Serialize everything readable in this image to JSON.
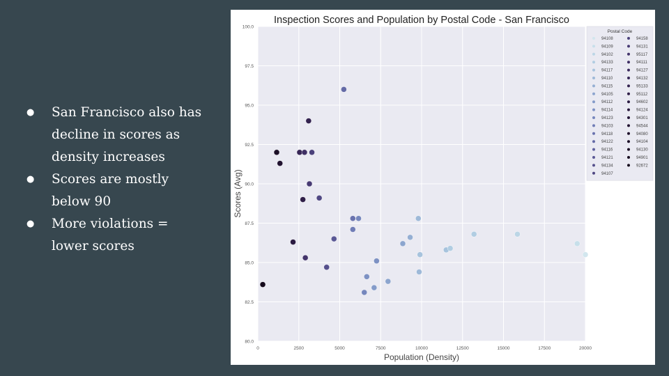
{
  "slide": {
    "background": "#37474f",
    "bullets": [
      "San Francisco also has decline in scores as density increases",
      "Scores are mostly below 90",
      "More violations = lower scores"
    ],
    "bullet_glyph": "●"
  },
  "chart_data": {
    "type": "scatter",
    "title": "Inspection Scores and Population by Postal Code - San Francisco",
    "xlabel": "Population (Density)",
    "ylabel": "Scores (Avg)",
    "xlim": [
      0,
      20000
    ],
    "ylim": [
      80,
      100
    ],
    "x_ticks": [
      "0",
      "2500",
      "5000",
      "7500",
      "10000",
      "12500",
      "15000",
      "17500",
      "20000"
    ],
    "y_ticks": [
      "80.0",
      "82.5",
      "85.0",
      "87.5",
      "90.0",
      "92.5",
      "95.0",
      "97.5",
      "100.0"
    ],
    "grid": true,
    "legend": {
      "title": "Postal Code",
      "placement": "top-right",
      "entries": [
        "94108",
        "94109",
        "94102",
        "94133",
        "94117",
        "94110",
        "94115",
        "94105",
        "94112",
        "94114",
        "94123",
        "94103",
        "94118",
        "94122",
        "94116",
        "94121",
        "94134",
        "94107",
        "94158",
        "94131",
        "95117",
        "94111",
        "94127",
        "94132",
        "95133",
        "95112",
        "94602",
        "94124",
        "94301",
        "94544",
        "94080",
        "94104",
        "94130",
        "94901",
        "92672"
      ],
      "colors": [
        "#d2e6ee",
        "#c7dfea",
        "#bcd6e6",
        "#b1cde2",
        "#a7c3dd",
        "#9eb9d8",
        "#95afd3",
        "#8ca5ce",
        "#849bc9",
        "#7d91c3",
        "#7687bd",
        "#707db6",
        "#6a73ae",
        "#646aa6",
        "#5f619e",
        "#5a5895",
        "#55508c",
        "#504883",
        "#4b417b",
        "#473a73",
        "#43346b",
        "#3f2f64",
        "#3b2a5d",
        "#372656",
        "#33224f",
        "#2f1e48",
        "#2b1b42",
        "#28183c",
        "#251536",
        "#221331",
        "#1f112c",
        "#1c0f27",
        "#1a0d23",
        "#170b1f",
        "#14091b"
      ]
    },
    "points": [
      {
        "x": 300,
        "y": 83.6,
        "color": "#14091b"
      },
      {
        "x": 1150,
        "y": 92.0,
        "color": "#1c0f27"
      },
      {
        "x": 1350,
        "y": 91.3,
        "color": "#221331"
      },
      {
        "x": 2150,
        "y": 86.3,
        "color": "#2b1b42"
      },
      {
        "x": 2550,
        "y": 92.0,
        "color": "#372656"
      },
      {
        "x": 2750,
        "y": 89.0,
        "color": "#2f1e48"
      },
      {
        "x": 2850,
        "y": 92.0,
        "color": "#3f2f64"
      },
      {
        "x": 2900,
        "y": 85.3,
        "color": "#43346b"
      },
      {
        "x": 3100,
        "y": 94.0,
        "color": "#33224f"
      },
      {
        "x": 3150,
        "y": 90.0,
        "color": "#473a73"
      },
      {
        "x": 3300,
        "y": 92.0,
        "color": "#4b417b"
      },
      {
        "x": 3750,
        "y": 89.1,
        "color": "#504883"
      },
      {
        "x": 4200,
        "y": 84.7,
        "color": "#55508c"
      },
      {
        "x": 4650,
        "y": 86.5,
        "color": "#5a5895"
      },
      {
        "x": 5250,
        "y": 96.0,
        "color": "#646aa6"
      },
      {
        "x": 5800,
        "y": 87.8,
        "color": "#6a73ae"
      },
      {
        "x": 5800,
        "y": 87.1,
        "color": "#707db6"
      },
      {
        "x": 6150,
        "y": 87.8,
        "color": "#7687bd"
      },
      {
        "x": 6500,
        "y": 83.1,
        "color": "#7687bd"
      },
      {
        "x": 6650,
        "y": 84.1,
        "color": "#7d91c3"
      },
      {
        "x": 7100,
        "y": 83.4,
        "color": "#849bc9"
      },
      {
        "x": 7250,
        "y": 85.1,
        "color": "#7d91c3"
      },
      {
        "x": 7950,
        "y": 83.8,
        "color": "#8ca5ce"
      },
      {
        "x": 8850,
        "y": 86.2,
        "color": "#8ca5ce"
      },
      {
        "x": 9300,
        "y": 86.6,
        "color": "#95afd3"
      },
      {
        "x": 9800,
        "y": 87.8,
        "color": "#9eb9d8"
      },
      {
        "x": 9850,
        "y": 84.4,
        "color": "#9eb9d8"
      },
      {
        "x": 9900,
        "y": 85.5,
        "color": "#a7c3dd"
      },
      {
        "x": 11500,
        "y": 85.8,
        "color": "#a7c3dd"
      },
      {
        "x": 11750,
        "y": 85.9,
        "color": "#b1cde2"
      },
      {
        "x": 13200,
        "y": 86.8,
        "color": "#b1cde2"
      },
      {
        "x": 15850,
        "y": 86.8,
        "color": "#bcd6e6"
      },
      {
        "x": 19500,
        "y": 86.2,
        "color": "#c7dfea"
      },
      {
        "x": 20000,
        "y": 85.5,
        "color": "#d2e6ee"
      }
    ]
  }
}
